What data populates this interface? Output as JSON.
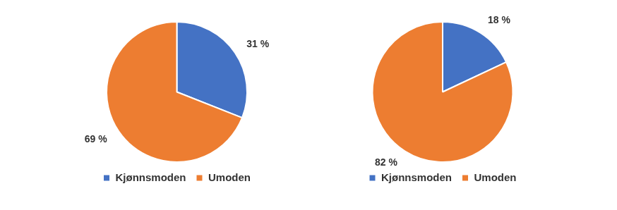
{
  "chart_data": [
    {
      "type": "pie",
      "categories": [
        "Kjønnsmoden",
        "Umoden"
      ],
      "values": [
        31,
        69
      ],
      "value_labels": [
        "31 %",
        "69 %"
      ],
      "colors": [
        "#4472c4",
        "#ed7d31"
      ],
      "data_labels": true,
      "legend": "bottom"
    },
    {
      "type": "pie",
      "categories": [
        "Kjønnsmoden",
        "Umoden"
      ],
      "values": [
        18,
        82
      ],
      "value_labels": [
        "18 %",
        "82 %"
      ],
      "colors": [
        "#4472c4",
        "#ed7d31"
      ],
      "data_labels": true,
      "legend": "bottom"
    }
  ]
}
